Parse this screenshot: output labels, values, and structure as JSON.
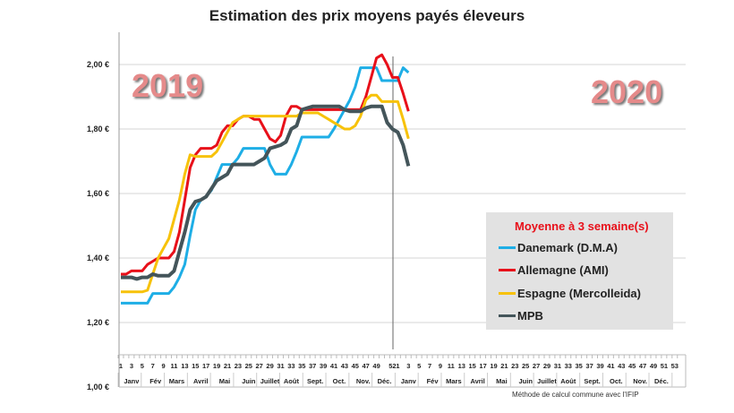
{
  "chart_data": {
    "type": "line",
    "title": "Estimation des prix moyens payés éleveurs",
    "annotations": [
      "2019",
      "2020"
    ],
    "note": "Méthode de calcul commune avec l'IFIP",
    "ylim": [
      1.0,
      2.1
    ],
    "yticks": [
      "1,00 €",
      "1,20 €",
      "1,40 €",
      "1,60 €",
      "1,80 €",
      "2,00 €"
    ],
    "ytick_values": [
      1.0,
      1.2,
      1.4,
      1.6,
      1.8,
      2.0
    ],
    "week_labels_2019": [
      "1",
      "3",
      "5",
      "7",
      "9",
      "11",
      "13",
      "15",
      "17",
      "19",
      "21",
      "23",
      "25",
      "27",
      "29",
      "31",
      "33",
      "35",
      "37",
      "39",
      "41",
      "43",
      "45",
      "47",
      "49",
      "52"
    ],
    "week_labels_2020": [
      "1",
      "3",
      "5",
      "7",
      "9",
      "11",
      "13",
      "15",
      "17",
      "19",
      "21",
      "23",
      "25",
      "27",
      "29",
      "31",
      "33",
      "35",
      "37",
      "39",
      "41",
      "43",
      "45",
      "47",
      "49",
      "51",
      "53"
    ],
    "months": [
      "Janv",
      "Fév",
      "Mars",
      "Avril",
      "Mai",
      "Juin",
      "Juillet",
      "Août",
      "Sept.",
      "Oct.",
      "Nov.",
      "Déc."
    ],
    "x_description": "weeks 2019 W1–W52 then 2020 W1–W3",
    "legend": {
      "title": "Moyenne à  3 semaine(s)",
      "position": "bottom-right"
    },
    "grid": true,
    "series": [
      {
        "name": "Danemark (D.M.A)",
        "color": "#1eaee6",
        "values": [
          1.26,
          1.26,
          1.26,
          1.26,
          1.26,
          1.26,
          1.29,
          1.29,
          1.29,
          1.29,
          1.31,
          1.34,
          1.38,
          1.47,
          1.55,
          1.58,
          1.59,
          1.61,
          1.65,
          1.69,
          1.69,
          1.69,
          1.71,
          1.74,
          1.74,
          1.74,
          1.74,
          1.74,
          1.69,
          1.66,
          1.66,
          1.66,
          1.69,
          1.73,
          1.775,
          1.775,
          1.775,
          1.775,
          1.775,
          1.775,
          1.8,
          1.83,
          1.86,
          1.89,
          1.93,
          1.99,
          1.99,
          1.99,
          1.99,
          1.95,
          1.95,
          1.95,
          1.95,
          1.99,
          1.975
        ]
      },
      {
        "name": "Allemagne (AMI)",
        "color": "#e8101a",
        "values": [
          1.35,
          1.35,
          1.36,
          1.36,
          1.36,
          1.38,
          1.39,
          1.4,
          1.4,
          1.4,
          1.42,
          1.48,
          1.58,
          1.68,
          1.72,
          1.74,
          1.74,
          1.74,
          1.75,
          1.79,
          1.81,
          1.81,
          1.83,
          1.84,
          1.84,
          1.83,
          1.83,
          1.8,
          1.77,
          1.76,
          1.78,
          1.84,
          1.87,
          1.87,
          1.86,
          1.86,
          1.86,
          1.86,
          1.86,
          1.86,
          1.86,
          1.86,
          1.86,
          1.86,
          1.86,
          1.86,
          1.9,
          1.96,
          2.02,
          2.03,
          2.0,
          1.96,
          1.96,
          1.91,
          1.855
        ]
      },
      {
        "name": "Espagne (Mercolleida)",
        "color": "#f7c20a",
        "values": [
          1.295,
          1.295,
          1.295,
          1.295,
          1.295,
          1.3,
          1.35,
          1.4,
          1.43,
          1.46,
          1.52,
          1.58,
          1.66,
          1.72,
          1.715,
          1.715,
          1.715,
          1.715,
          1.73,
          1.76,
          1.79,
          1.82,
          1.83,
          1.84,
          1.84,
          1.84,
          1.84,
          1.84,
          1.84,
          1.84,
          1.84,
          1.84,
          1.84,
          1.84,
          1.85,
          1.85,
          1.85,
          1.85,
          1.84,
          1.83,
          1.82,
          1.81,
          1.8,
          1.8,
          1.81,
          1.84,
          1.89,
          1.905,
          1.905,
          1.885,
          1.885,
          1.885,
          1.885,
          1.83,
          1.77
        ]
      },
      {
        "name": "MPB",
        "color": "#44555a",
        "values": [
          1.34,
          1.34,
          1.34,
          1.335,
          1.34,
          1.34,
          1.35,
          1.345,
          1.345,
          1.345,
          1.36,
          1.42,
          1.48,
          1.55,
          1.575,
          1.58,
          1.59,
          1.615,
          1.64,
          1.65,
          1.66,
          1.69,
          1.69,
          1.69,
          1.69,
          1.69,
          1.7,
          1.71,
          1.74,
          1.745,
          1.75,
          1.76,
          1.8,
          1.81,
          1.86,
          1.865,
          1.87,
          1.87,
          1.87,
          1.87,
          1.87,
          1.87,
          1.86,
          1.855,
          1.855,
          1.855,
          1.865,
          1.87,
          1.87,
          1.87,
          1.82,
          1.8,
          1.79,
          1.75,
          1.685
        ]
      }
    ]
  }
}
